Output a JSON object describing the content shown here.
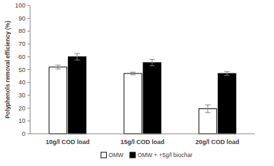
{
  "chart_data": {
    "type": "bar",
    "y_label": "Polyphenols removal efficiency (%)",
    "categories": [
      "10g/l COD load",
      "15g/l COD load",
      "20g/l COD load"
    ],
    "series": [
      {
        "name": "OMW",
        "color": "#ffffff",
        "values": [
          52,
          47,
          19.5
        ],
        "errors": [
          1.5,
          1,
          3
        ]
      },
      {
        "name": "OMW + +5g/l biochar",
        "color": "#000000",
        "values": [
          60,
          55.5,
          47
        ],
        "errors": [
          2.5,
          2.5,
          1.5
        ]
      }
    ],
    "ylim": [
      0,
      100
    ],
    "yticks": [
      0,
      10,
      20,
      30,
      40,
      50,
      60,
      70,
      80,
      90,
      100
    ],
    "grid": false,
    "legend": "bottom"
  }
}
